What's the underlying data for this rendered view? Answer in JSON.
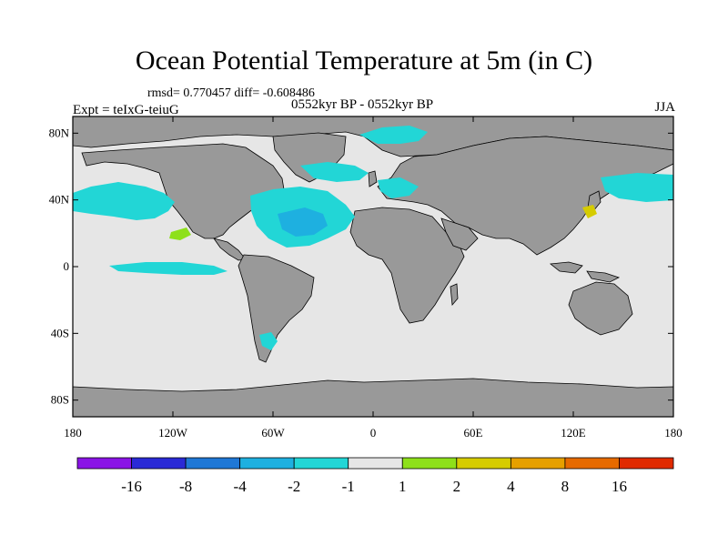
{
  "figure": {
    "title": "Ocean Potential Temperature at 5m (in C)",
    "stats": "rmsd= 0.770457 diff= -0.608486",
    "experiment": "Expt = teIxG-teiuG",
    "period": "0552kyr BP - 0552kyr BP",
    "season": "JJA"
  },
  "axes": {
    "lat_labels": [
      "80N",
      "40N",
      "0",
      "40S",
      "80S"
    ],
    "lat_values": [
      80,
      40,
      0,
      -40,
      -80
    ],
    "lon_labels": [
      "180",
      "120W",
      "60W",
      "0",
      "60E",
      "120E",
      "180"
    ],
    "lon_values": [
      -180,
      -120,
      -60,
      0,
      60,
      120,
      180
    ],
    "lat_range": [
      -90,
      90
    ],
    "lon_range": [
      -180,
      180
    ]
  },
  "colorbar": {
    "colors": [
      "#8a14e6",
      "#2a2ad6",
      "#1f78d6",
      "#1eb0e0",
      "#22d6d6",
      "#e6e6e6",
      "#8ee01a",
      "#d6cc00",
      "#e6a000",
      "#e66a00",
      "#e02a00"
    ],
    "labels": [
      "-16",
      "-8",
      "-4",
      "-2",
      "-1",
      "1",
      "2",
      "4",
      "8",
      "16"
    ]
  },
  "map_colors": {
    "ocean_neutral": "#e6e6e6",
    "land": "#999999",
    "coast": "#000000"
  }
}
